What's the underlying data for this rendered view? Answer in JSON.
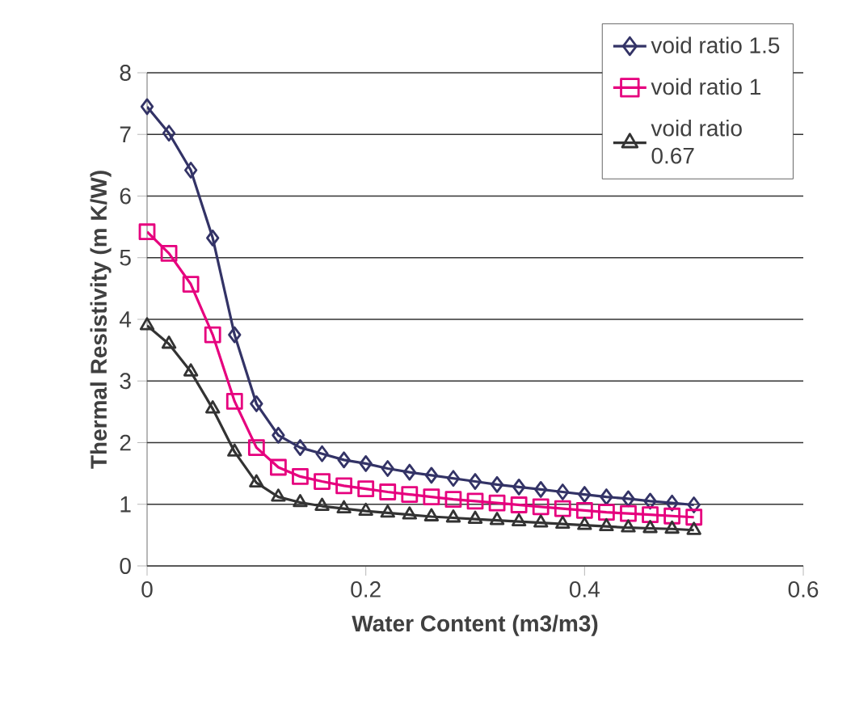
{
  "chart_data": {
    "type": "line",
    "xlabel": "Water Content (m3/m3)",
    "ylabel": "Thermal Resistivity (m K/W)",
    "x": [
      0,
      0.02,
      0.04,
      0.06,
      0.08,
      0.1,
      0.12,
      0.14,
      0.16,
      0.18,
      0.2,
      0.22,
      0.24,
      0.26,
      0.28,
      0.3,
      0.32,
      0.34,
      0.36,
      0.38,
      0.4,
      0.42,
      0.44,
      0.46,
      0.48,
      0.5
    ],
    "series": [
      {
        "name": "void ratio 1.5",
        "color": "#333366",
        "marker": "diamond",
        "values": [
          7.45,
          7.02,
          6.42,
          5.32,
          3.75,
          2.63,
          2.12,
          1.92,
          1.82,
          1.72,
          1.66,
          1.58,
          1.52,
          1.47,
          1.42,
          1.37,
          1.32,
          1.28,
          1.24,
          1.2,
          1.16,
          1.12,
          1.09,
          1.05,
          1.02,
          0.99
        ]
      },
      {
        "name": "void ratio 1",
        "color": "#e6007e",
        "marker": "square",
        "values": [
          5.42,
          5.07,
          4.57,
          3.75,
          2.67,
          1.92,
          1.6,
          1.45,
          1.37,
          1.3,
          1.25,
          1.2,
          1.16,
          1.12,
          1.08,
          1.05,
          1.02,
          0.99,
          0.96,
          0.93,
          0.9,
          0.87,
          0.85,
          0.83,
          0.81,
          0.79
        ]
      },
      {
        "name": "void ratio 0.67",
        "color": "#333333",
        "marker": "triangle",
        "values": [
          3.9,
          3.6,
          3.15,
          2.55,
          1.85,
          1.35,
          1.12,
          1.03,
          0.97,
          0.93,
          0.89,
          0.86,
          0.83,
          0.8,
          0.78,
          0.76,
          0.74,
          0.72,
          0.7,
          0.68,
          0.66,
          0.64,
          0.62,
          0.61,
          0.6,
          0.58
        ]
      }
    ],
    "xlim": [
      0,
      0.6
    ],
    "xticks": [
      0,
      0.2,
      0.4,
      0.6
    ],
    "ylim": [
      0,
      8
    ],
    "yticks": [
      0,
      1,
      2,
      3,
      4,
      5,
      6,
      7,
      8
    ],
    "grid": "y",
    "legend": "top right",
    "line_style": "solid"
  }
}
